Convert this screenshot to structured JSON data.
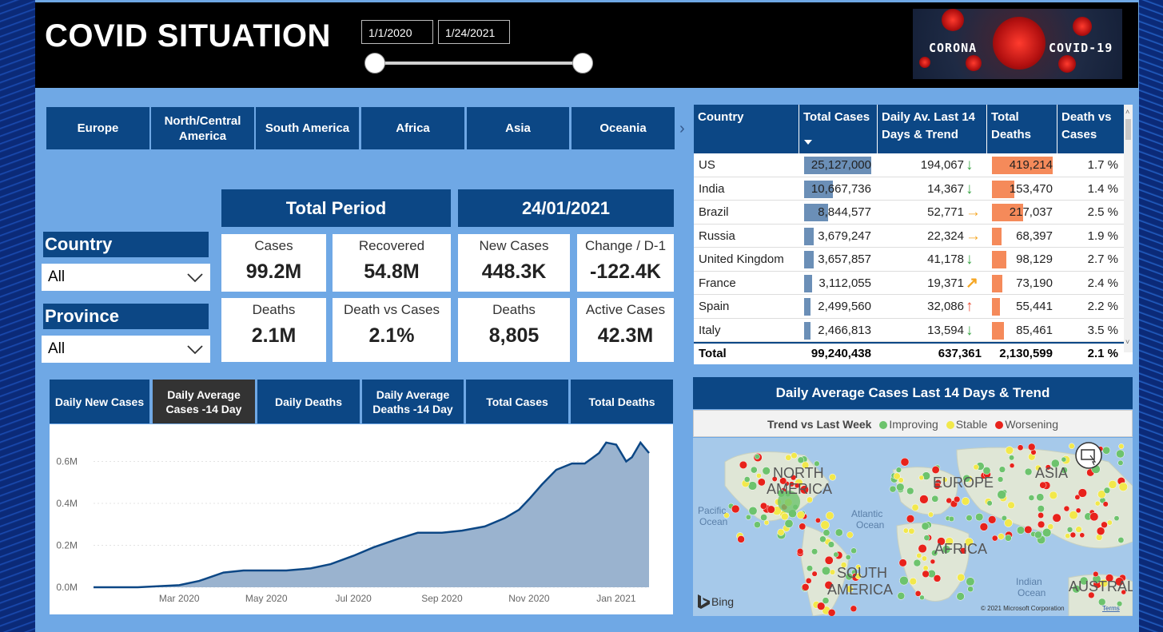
{
  "header": {
    "title": "COVID SITUATION",
    "date_start": "1/1/2020",
    "date_end": "1/24/2021",
    "logo_left_text": "CORONA",
    "logo_right_text": "COVID-19"
  },
  "regions": [
    "Europe",
    "North/Central America",
    "South America",
    "Africa",
    "Asia",
    "Oceania"
  ],
  "filters": {
    "country_label": "Country",
    "country_value": "All",
    "province_label": "Province",
    "province_value": "All"
  },
  "total_period": {
    "title": "Total Period",
    "cards": [
      {
        "label": "Cases",
        "value": "99.2M"
      },
      {
        "label": "Recovered",
        "value": "54.8M"
      },
      {
        "label": "Deaths",
        "value": "2.1M"
      },
      {
        "label": "Death vs Cases",
        "value": "2.1%"
      }
    ]
  },
  "day_period": {
    "title": "24/01/2021",
    "cards": [
      {
        "label": "New Cases",
        "value": "448.3K"
      },
      {
        "label": "Change / D-1",
        "value": "-122.4K"
      },
      {
        "label": "Deaths",
        "value": "8,805"
      },
      {
        "label": "Active Cases",
        "value": "42.3M"
      }
    ]
  },
  "chart_tabs": [
    {
      "label": "Daily New Cases",
      "active": false
    },
    {
      "label": "Daily Average Cases -14 Day",
      "active": true
    },
    {
      "label": "Daily Deaths",
      "active": false
    },
    {
      "label": "Daily Average Deaths -14 Day",
      "active": false
    },
    {
      "label": "Total Cases",
      "active": false
    },
    {
      "label": "Total Deaths",
      "active": false
    }
  ],
  "chart_data": {
    "type": "area",
    "title": "",
    "xlabel": "",
    "ylabel": "",
    "x_ticks": [
      "Mar 2020",
      "May 2020",
      "Jul 2020",
      "Sep 2020",
      "Nov 2020",
      "Jan 2021"
    ],
    "y_ticks": [
      "0.0M",
      "0.2M",
      "0.4M",
      "0.6M"
    ],
    "ylim": [
      0,
      0.72
    ],
    "x": [
      "2020-01-01",
      "2020-02-01",
      "2020-03-01",
      "2020-03-15",
      "2020-04-01",
      "2020-04-15",
      "2020-05-01",
      "2020-05-15",
      "2020-06-01",
      "2020-06-15",
      "2020-07-01",
      "2020-07-15",
      "2020-08-01",
      "2020-08-15",
      "2020-09-01",
      "2020-09-15",
      "2020-10-01",
      "2020-10-15",
      "2020-10-25",
      "2020-11-01",
      "2020-11-10",
      "2020-11-20",
      "2020-12-01",
      "2020-12-10",
      "2020-12-20",
      "2020-12-25",
      "2021-01-01",
      "2021-01-08",
      "2021-01-12",
      "2021-01-18",
      "2021-01-24"
    ],
    "series": [
      {
        "values": [
          0.0,
          0.0,
          0.01,
          0.03,
          0.07,
          0.08,
          0.08,
          0.08,
          0.09,
          0.11,
          0.15,
          0.19,
          0.23,
          0.26,
          0.26,
          0.27,
          0.29,
          0.33,
          0.37,
          0.42,
          0.49,
          0.56,
          0.59,
          0.59,
          0.64,
          0.69,
          0.68,
          0.6,
          0.62,
          0.69,
          0.64
        ]
      }
    ],
    "grid": true
  },
  "table": {
    "columns": [
      "Country",
      "Total Cases",
      "Daily Av. Last 14 Days & Trend",
      "Total Deaths",
      "Death vs Cases"
    ],
    "rows": [
      {
        "country": "US",
        "total_cases": "25,127,000",
        "total_cases_num": 25127000,
        "daily_avg": "194,067",
        "trend": "down",
        "deaths": "419,214",
        "deaths_num": 419214,
        "death_rate": "1.7 %"
      },
      {
        "country": "India",
        "total_cases": "10,667,736",
        "total_cases_num": 10667736,
        "daily_avg": "14,367",
        "trend": "down",
        "deaths": "153,470",
        "deaths_num": 153470,
        "death_rate": "1.4 %"
      },
      {
        "country": "Brazil",
        "total_cases": "8,844,577",
        "total_cases_num": 8844577,
        "daily_avg": "52,771",
        "trend": "flat",
        "deaths": "217,037",
        "deaths_num": 217037,
        "death_rate": "2.5 %"
      },
      {
        "country": "Russia",
        "total_cases": "3,679,247",
        "total_cases_num": 3679247,
        "daily_avg": "22,324",
        "trend": "flat",
        "deaths": "68,397",
        "deaths_num": 68397,
        "death_rate": "1.9 %"
      },
      {
        "country": "United Kingdom",
        "total_cases": "3,657,857",
        "total_cases_num": 3657857,
        "daily_avg": "41,178",
        "trend": "down",
        "deaths": "98,129",
        "deaths_num": 98129,
        "death_rate": "2.7 %"
      },
      {
        "country": "France",
        "total_cases": "3,112,055",
        "total_cases_num": 3112055,
        "daily_avg": "19,371",
        "trend": "up-slight",
        "deaths": "73,190",
        "deaths_num": 73190,
        "death_rate": "2.4 %"
      },
      {
        "country": "Spain",
        "total_cases": "2,499,560",
        "total_cases_num": 2499560,
        "daily_avg": "32,086",
        "trend": "up",
        "deaths": "55,441",
        "deaths_num": 55441,
        "death_rate": "2.2 %"
      },
      {
        "country": "Italy",
        "total_cases": "2,466,813",
        "total_cases_num": 2466813,
        "daily_avg": "13,594",
        "trend": "down",
        "deaths": "85,461",
        "deaths_num": 85461,
        "death_rate": "3.5 %"
      }
    ],
    "total": {
      "label": "Total",
      "total_cases": "99,240,438",
      "daily_avg": "637,361",
      "deaths": "2,130,599",
      "death_rate": "2.1 %"
    }
  },
  "map": {
    "title": "Daily Average Cases Last 14 Days & Trend",
    "legend_title": "Trend vs Last Week",
    "legend": [
      {
        "label": "Improving",
        "color": "#6dc36d"
      },
      {
        "label": "Stable",
        "color": "#f2e84b"
      },
      {
        "label": "Worsening",
        "color": "#e8221b"
      }
    ],
    "labels": [
      "NORTH",
      "AMERICA",
      "EUROPE",
      "ASIA",
      "AFRICA",
      "SOUTH",
      "AMERICA",
      "AUSTRAL",
      "Pacific",
      "Ocean",
      "Atlantic",
      "Ocean",
      "Indian",
      "Ocean"
    ],
    "bing": "Bing",
    "copyright": "© 2021 Microsoft Corporation",
    "terms": "Terms"
  },
  "colors": {
    "navy": "#0c4785",
    "canvas": "#6fa8e5",
    "bar_cases": "#6b8fb7",
    "bar_deaths": "#f58a5a",
    "arrow_down": "#3ea84a",
    "arrow_flat": "#f5a623",
    "arrow_up": "#e94b33"
  }
}
